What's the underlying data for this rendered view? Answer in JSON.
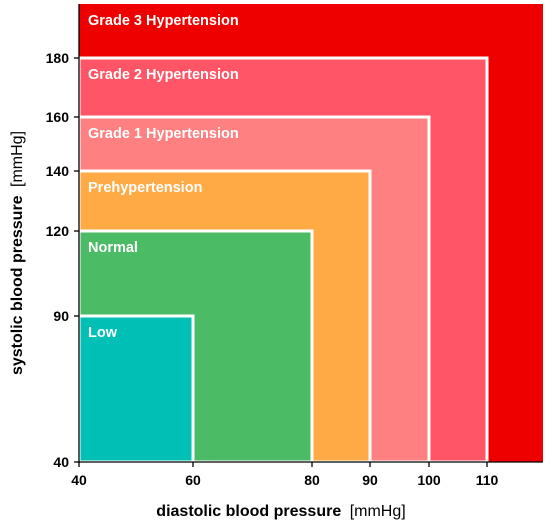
{
  "chart_data": {
    "type": "area",
    "xlabel": "diastolic blood pressure",
    "xunit": "[mmHg]",
    "ylabel": "systolic blood pressure",
    "yunit": "[mmHg]",
    "xticks": [
      40,
      60,
      80,
      90,
      100,
      110
    ],
    "yticks": [
      40,
      90,
      120,
      140,
      160,
      180
    ],
    "xlim": [
      40,
      120
    ],
    "ylim": [
      40,
      195
    ],
    "regions": [
      {
        "label": "Grade 3 Hypertension",
        "x_max": 120,
        "y_max": 195,
        "color": "#ee0000"
      },
      {
        "label": "Grade 2 Hypertension",
        "x_max": 110,
        "y_max": 180,
        "color": "#ff5566"
      },
      {
        "label": "Grade 1 Hypertension",
        "x_max": 100,
        "y_max": 160,
        "color": "#ff8080"
      },
      {
        "label": "Prehypertension",
        "x_max": 90,
        "y_max": 140,
        "color": "#ffaa44"
      },
      {
        "label": "Normal",
        "x_max": 80,
        "y_max": 120,
        "color": "#4cbb66"
      },
      {
        "label": "Low",
        "x_max": 60,
        "y_max": 90,
        "color": "#00c0b5"
      }
    ]
  }
}
